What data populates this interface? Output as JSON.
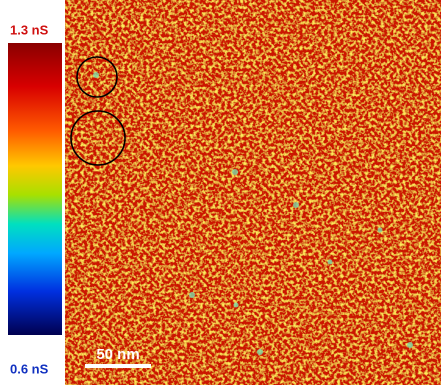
{
  "colorbar": {
    "max_label": "1.3 nS",
    "min_label": "0.6 nS"
  },
  "scale_bar": {
    "label": "50 nm"
  }
}
